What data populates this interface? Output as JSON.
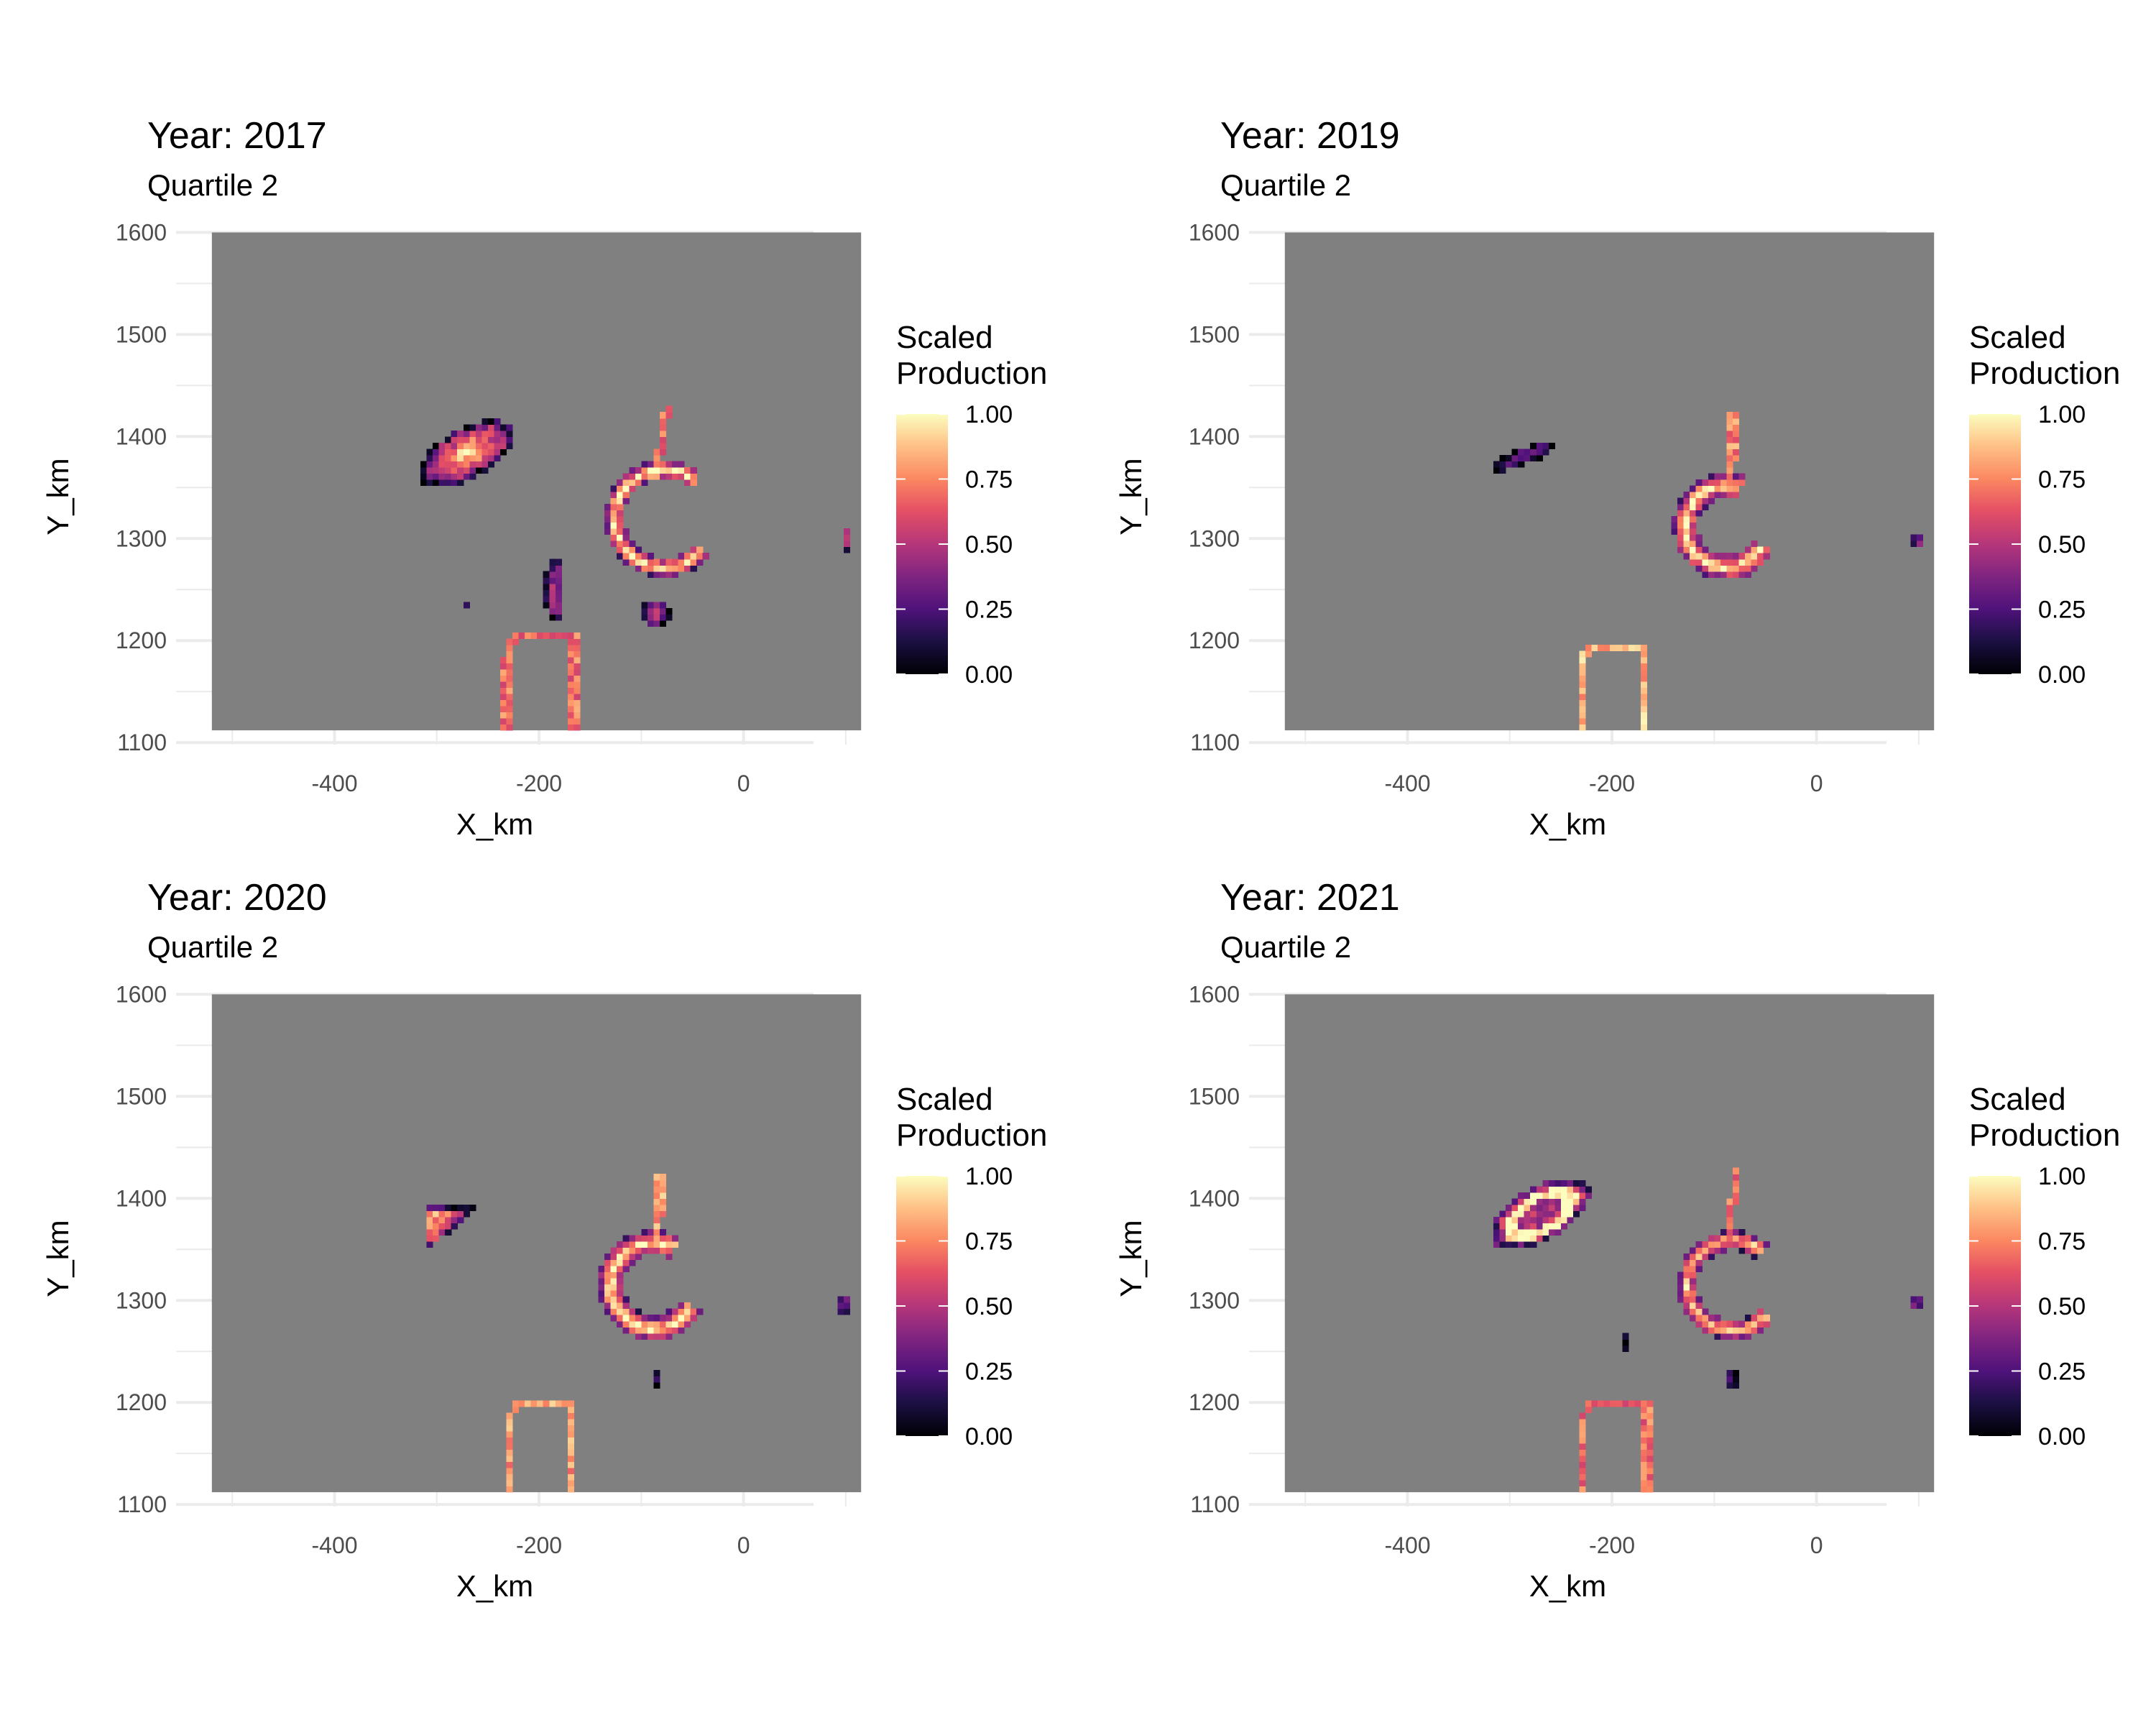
{
  "chart_data": [
    {
      "type": "heatmap",
      "title": "Year: 2017",
      "subtitle": "Quartile 2",
      "xlabel": "X_km",
      "ylabel": "Y_km",
      "xlim": [
        -520,
        115
      ],
      "ylim": [
        1112,
        1600
      ],
      "x_ticks": [
        "-400",
        "-200",
        "0"
      ],
      "y_ticks": [
        "1100",
        "1200",
        "1300",
        "1400",
        "1500",
        "1600"
      ],
      "legend": {
        "title": [
          "Scaled",
          "Production"
        ],
        "placement": "right",
        "ticks": [
          "0.00",
          "0.25",
          "0.50",
          "0.75",
          "1.00"
        ]
      },
      "background_color": "#808080",
      "grid": true,
      "colormap": "magma",
      "cell_size": 6,
      "regions": [
        {
          "kind": "blob",
          "cx": -272,
          "cy": 1383,
          "rx": 52,
          "ry": 24,
          "rot": 30,
          "peak": 0.95
        },
        {
          "kind": "blob",
          "cx": -185,
          "cy": 1250,
          "rx": 10,
          "ry": 32,
          "rot": 0,
          "peak": 0.55
        },
        {
          "kind": "blob",
          "cx": -86,
          "cy": 1227,
          "rx": 14,
          "ry": 14,
          "rot": 0,
          "peak": 0.6
        },
        {
          "kind": "crescent",
          "cx": -78,
          "cy": 1320,
          "r": 48,
          "w": 9,
          "start": 50,
          "end": 320,
          "peak": 1.0
        },
        {
          "kind": "line",
          "pts": [
            [
              -88,
              1360
            ],
            [
              -80,
              1395
            ],
            [
              -75,
              1430
            ]
          ],
          "v": 0.7
        },
        {
          "kind": "arch",
          "x1": -232,
          "x2": -166,
          "y0": 1112,
          "ytop": 1205,
          "v": 0.7
        },
        {
          "kind": "blob",
          "cx": 100,
          "cy": 1300,
          "rx": 5,
          "ry": 12,
          "rot": 0,
          "peak": 0.7
        },
        {
          "kind": "blob",
          "cx": -272,
          "cy": 1234,
          "rx": 3,
          "ry": 3,
          "rot": 0,
          "peak": 0.1
        }
      ]
    },
    {
      "type": "heatmap",
      "title": "Year: 2019",
      "subtitle": "Quartile 2",
      "xlabel": "X_km",
      "ylabel": "Y_km",
      "xlim": [
        -520,
        115
      ],
      "ylim": [
        1112,
        1600
      ],
      "x_ticks": [
        "-400",
        "-200",
        "0"
      ],
      "y_ticks": [
        "1100",
        "1200",
        "1300",
        "1400",
        "1500",
        "1600"
      ],
      "legend": {
        "title": [
          "Scaled",
          "Production"
        ],
        "placement": "right",
        "ticks": [
          "0.00",
          "0.25",
          "0.50",
          "0.75",
          "1.00"
        ]
      },
      "background_color": "#808080",
      "grid": true,
      "colormap": "magma",
      "cell_size": 6,
      "regions": [
        {
          "kind": "blob",
          "cx": -288,
          "cy": 1380,
          "rx": 34,
          "ry": 8,
          "rot": 20,
          "peak": 0.35
        },
        {
          "kind": "crescent",
          "cx": -88,
          "cy": 1312,
          "r": 40,
          "w": 12,
          "start": 70,
          "end": 330,
          "peak": 1.0
        },
        {
          "kind": "line",
          "pts": [
            [
              -85,
              1350
            ],
            [
              -82,
              1380
            ],
            [
              -82,
              1420
            ]
          ],
          "v": 0.75
        },
        {
          "kind": "arch",
          "x1": -230,
          "x2": -168,
          "y0": 1112,
          "ytop": 1195,
          "v": 0.85
        },
        {
          "kind": "blob",
          "cx": 98,
          "cy": 1298,
          "rx": 5,
          "ry": 10,
          "rot": 0,
          "peak": 0.55
        }
      ]
    },
    {
      "type": "heatmap",
      "title": "Year: 2020",
      "subtitle": "Quartile 2",
      "xlabel": "X_km",
      "ylabel": "Y_km",
      "xlim": [
        -520,
        115
      ],
      "ylim": [
        1112,
        1600
      ],
      "x_ticks": [
        "-400",
        "-200",
        "0"
      ],
      "y_ticks": [
        "1100",
        "1200",
        "1300",
        "1400",
        "1500",
        "1600"
      ],
      "legend": {
        "title": [
          "Scaled",
          "Production"
        ],
        "placement": "right",
        "ticks": [
          "0.00",
          "0.25",
          "0.50",
          "0.75",
          "1.00"
        ]
      },
      "background_color": "#808080",
      "grid": true,
      "colormap": "magma",
      "cell_size": 6,
      "regions": [
        {
          "kind": "triangle",
          "pts": [
            [
              -312,
              1392
            ],
            [
              -255,
              1395
            ],
            [
              -312,
              1348
            ]
          ],
          "peak": 0.95
        },
        {
          "kind": "crescent",
          "cx": -88,
          "cy": 1315,
          "r": 42,
          "w": 12,
          "start": 60,
          "end": 330,
          "peak": 1.0
        },
        {
          "kind": "line",
          "pts": [
            [
              -85,
              1355
            ],
            [
              -82,
              1385
            ],
            [
              -82,
              1420
            ]
          ],
          "v": 0.8
        },
        {
          "kind": "arch",
          "x1": -230,
          "x2": -168,
          "y0": 1112,
          "ytop": 1200,
          "v": 0.8
        },
        {
          "kind": "blob",
          "cx": -84,
          "cy": 1222,
          "rx": 4,
          "ry": 8,
          "rot": 0,
          "peak": 0.1
        },
        {
          "kind": "blob",
          "cx": 98,
          "cy": 1296,
          "rx": 5,
          "ry": 10,
          "rot": 0,
          "peak": 0.5
        }
      ]
    },
    {
      "type": "heatmap",
      "title": "Year: 2021",
      "subtitle": "Quartile 2",
      "xlabel": "X_km",
      "ylabel": "Y_km",
      "xlim": [
        -520,
        115
      ],
      "ylim": [
        1112,
        1600
      ],
      "x_ticks": [
        "-400",
        "-200",
        "0"
      ],
      "y_ticks": [
        "1100",
        "1200",
        "1300",
        "1400",
        "1500",
        "1600"
      ],
      "legend": {
        "title": [
          "Scaled",
          "Production"
        ],
        "placement": "right",
        "ticks": [
          "0.00",
          "0.25",
          "0.50",
          "0.75",
          "1.00"
        ]
      },
      "background_color": "#808080",
      "grid": true,
      "colormap": "magma",
      "cell_size": 6,
      "regions": [
        {
          "kind": "ring",
          "cx": -270,
          "cy": 1385,
          "rx": 54,
          "ry": 26,
          "rot": 30,
          "w": 9,
          "peak": 1.0
        },
        {
          "kind": "crescent",
          "cx": -82,
          "cy": 1315,
          "r": 44,
          "w": 9,
          "start": 50,
          "end": 320,
          "peak": 0.95
        },
        {
          "kind": "line",
          "pts": [
            [
              -88,
              1360
            ],
            [
              -82,
              1395
            ],
            [
              -78,
              1428
            ]
          ],
          "v": 0.7
        },
        {
          "kind": "arch",
          "x1": -230,
          "x2": -166,
          "y0": 1112,
          "ytop": 1200,
          "v": 0.7
        },
        {
          "kind": "blob",
          "cx": -82,
          "cy": 1222,
          "rx": 8,
          "ry": 10,
          "rot": 0,
          "peak": 0.2
        },
        {
          "kind": "blob",
          "cx": -186,
          "cy": 1258,
          "rx": 3,
          "ry": 8,
          "rot": 0,
          "peak": 0.05
        },
        {
          "kind": "blob",
          "cx": -274,
          "cy": 1237,
          "rx": 3,
          "ry": 3,
          "rot": 0,
          "peak": 0.05
        },
        {
          "kind": "blob",
          "cx": 98,
          "cy": 1298,
          "rx": 5,
          "ry": 10,
          "rot": 0,
          "peak": 0.6
        }
      ]
    }
  ]
}
